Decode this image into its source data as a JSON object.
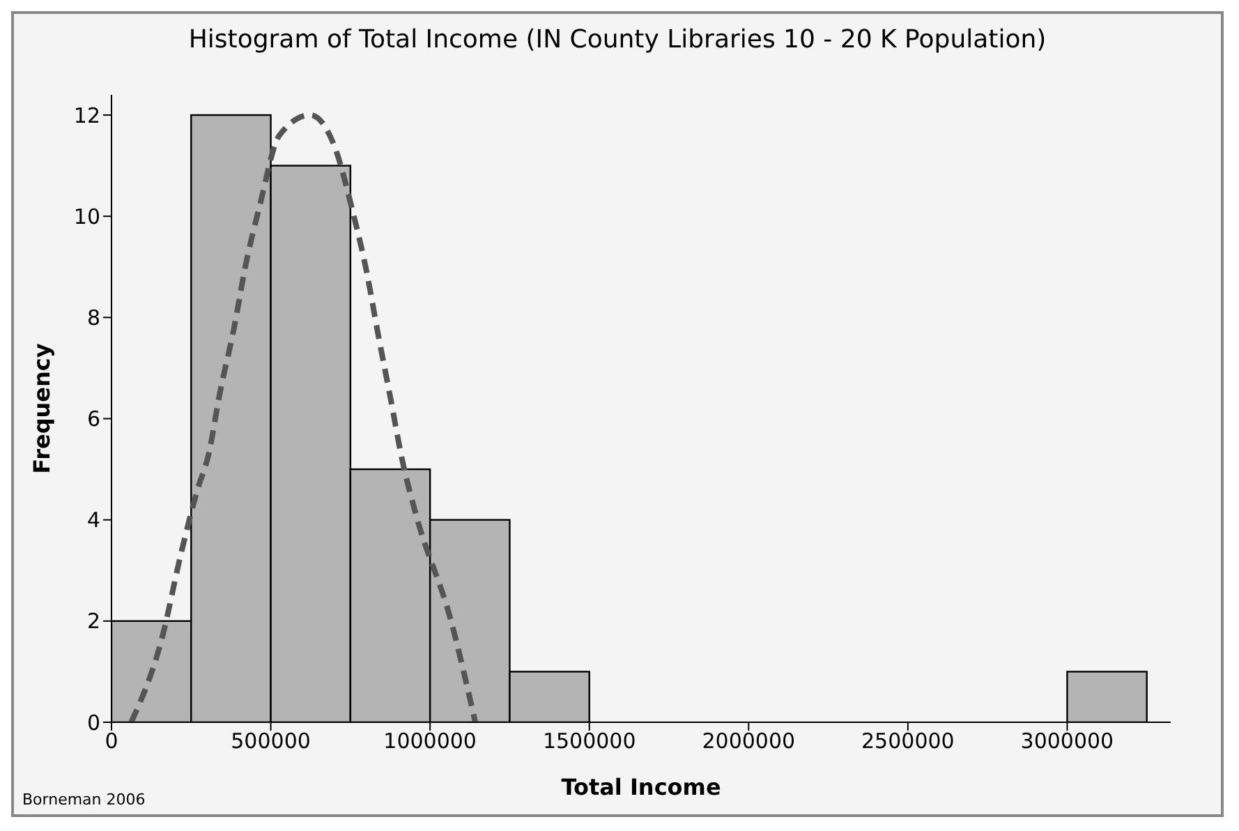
{
  "chart_data": {
    "type": "histogram",
    "title": "Histogram of Total Income (IN County Libraries 10 - 20 K Population)",
    "xlabel": "Total Income",
    "ylabel": "Frequency",
    "bins": [
      0,
      250000,
      500000,
      750000,
      1000000,
      1250000,
      1500000,
      1750000,
      2000000,
      2250000,
      2500000,
      2750000,
      3000000,
      3250000
    ],
    "values": [
      2,
      12,
      11,
      5,
      4,
      1,
      0,
      0,
      0,
      0,
      0,
      0,
      1
    ],
    "color": "#b4b4b4",
    "series": [
      {
        "type": "line",
        "color": "#555555",
        "line_style": "dashed",
        "x": [
          62000,
          160000,
          217000,
          270000,
          305000,
          340000,
          385000,
          420000,
          465000,
          527000,
          624000,
          699000,
          757000,
          801000,
          836000,
          876000,
          912000,
          956000,
          1066000,
          1142000
        ],
        "values": [
          0,
          1.7,
          3.3,
          4.6,
          5.3,
          6.5,
          7.8,
          9,
          10.2,
          11.6,
          12,
          11.4,
          10.1,
          8.9,
          7.7,
          6.4,
          5.2,
          4.1,
          2,
          0
        ]
      }
    ],
    "xlim": [
      0,
      3325000
    ],
    "xticks": [
      0,
      500000,
      1000000,
      1500000,
      2000000,
      2500000,
      3000000
    ],
    "ylim": [
      0,
      12.4
    ],
    "yticks": [
      0,
      2,
      4,
      6,
      8,
      10,
      12
    ],
    "grid": false,
    "legend": false,
    "annotations": [
      "Borneman 2006"
    ]
  }
}
